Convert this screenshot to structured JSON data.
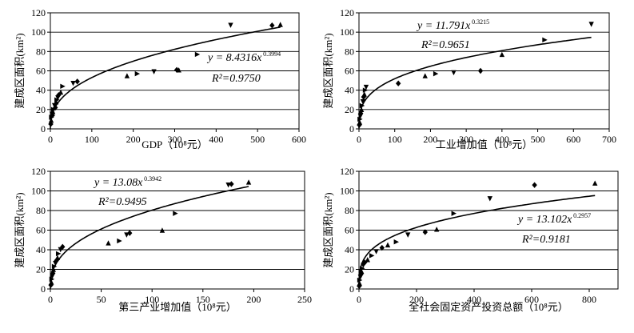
{
  "chart_data": [
    {
      "type": "scatter",
      "xlabel": "GDP（10⁸元）",
      "ylabel": "建成区面积(km²)",
      "xlim": [
        0,
        600
      ],
      "ylim": [
        0,
        120
      ],
      "xticks": [
        0,
        100,
        200,
        300,
        400,
        500,
        600
      ],
      "yticks": [
        0,
        20,
        40,
        60,
        80,
        100,
        120
      ],
      "fit": {
        "coef": 8.4316,
        "exp": 0.3994,
        "coef_text": "y = 8.4316x",
        "exp_text": "0.3994",
        "r2_text": "R²=0.9750"
      },
      "points": [
        [
          1,
          5
        ],
        [
          2,
          9
        ],
        [
          3,
          12
        ],
        [
          4,
          15
        ],
        [
          5,
          14
        ],
        [
          6,
          18
        ],
        [
          8,
          20
        ],
        [
          10,
          24
        ],
        [
          12,
          22
        ],
        [
          14,
          28
        ],
        [
          16,
          30
        ],
        [
          18,
          32
        ],
        [
          20,
          35
        ],
        [
          25,
          38
        ],
        [
          30,
          44
        ],
        [
          55,
          47
        ],
        [
          65,
          49
        ],
        [
          185,
          55
        ],
        [
          210,
          57
        ],
        [
          250,
          59
        ],
        [
          305,
          61
        ],
        [
          310,
          61
        ],
        [
          355,
          77
        ],
        [
          435,
          107
        ],
        [
          535,
          107
        ],
        [
          555,
          108
        ]
      ]
    },
    {
      "type": "scatter",
      "xlabel": "工业增加值（10⁸元）",
      "ylabel": "建成区面积(km²)",
      "xlim": [
        0,
        700
      ],
      "ylim": [
        0,
        120
      ],
      "xticks": [
        0,
        100,
        200,
        300,
        400,
        500,
        600,
        700
      ],
      "yticks": [
        0,
        20,
        40,
        60,
        80,
        100,
        120
      ],
      "fit": {
        "coef": 11.791,
        "exp": 0.3215,
        "coef_text": "y = 11.791x",
        "exp_text": "0.3215",
        "r2_text": "R²=0.9651"
      },
      "points": [
        [
          1,
          4
        ],
        [
          2,
          7
        ],
        [
          3,
          10
        ],
        [
          4,
          13
        ],
        [
          5,
          16
        ],
        [
          7,
          20
        ],
        [
          9,
          24
        ],
        [
          11,
          28
        ],
        [
          13,
          33
        ],
        [
          15,
          36
        ],
        [
          18,
          40
        ],
        [
          20,
          43
        ],
        [
          110,
          47
        ],
        [
          185,
          55
        ],
        [
          215,
          57
        ],
        [
          265,
          58
        ],
        [
          340,
          60
        ],
        [
          400,
          77
        ],
        [
          520,
          92
        ],
        [
          650,
          108
        ]
      ]
    },
    {
      "type": "scatter",
      "xlabel": "第三产业增加值（10⁸元）",
      "ylabel": "建成区面积(km²)",
      "xlim": [
        0,
        250
      ],
      "ylim": [
        0,
        120
      ],
      "xticks": [
        0,
        50,
        100,
        150,
        200,
        250
      ],
      "yticks": [
        0,
        20,
        40,
        60,
        80,
        100,
        120
      ],
      "fit": {
        "coef": 13.08,
        "exp": 0.3942,
        "coef_text": "y = 13.08x",
        "exp_text": "0.3942",
        "r2_text": "R²=0.9495"
      },
      "points": [
        [
          0.5,
          4
        ],
        [
          1,
          7
        ],
        [
          1.5,
          10
        ],
        [
          2,
          13
        ],
        [
          2.5,
          16
        ],
        [
          3,
          20
        ],
        [
          4,
          23
        ],
        [
          5,
          26
        ],
        [
          6,
          29
        ],
        [
          7,
          32
        ],
        [
          8,
          36
        ],
        [
          10,
          40
        ],
        [
          12,
          43
        ],
        [
          57,
          47
        ],
        [
          68,
          49
        ],
        [
          75,
          55
        ],
        [
          78,
          57
        ],
        [
          110,
          60
        ],
        [
          123,
          77
        ],
        [
          175,
          106
        ],
        [
          178,
          107
        ],
        [
          195,
          109
        ]
      ]
    },
    {
      "type": "scatter",
      "xlabel": "全社会固定资产投资总额（10⁸元）",
      "ylabel": "建成区面积(km²)",
      "xlim": [
        0,
        900
      ],
      "ylim": [
        0,
        120
      ],
      "xticks": [
        0,
        200,
        400,
        600,
        800
      ],
      "yticks": [
        0,
        20,
        40,
        60,
        80,
        100,
        120
      ],
      "fit": {
        "coef": 13.102,
        "exp": 0.2957,
        "coef_text": "y = 13.102x",
        "exp_text": "0.2957",
        "r2_text": "R²=0.9181"
      },
      "points": [
        [
          1,
          3
        ],
        [
          2,
          6
        ],
        [
          3,
          9
        ],
        [
          5,
          12
        ],
        [
          7,
          15
        ],
        [
          9,
          18
        ],
        [
          12,
          21
        ],
        [
          15,
          24
        ],
        [
          20,
          27
        ],
        [
          30,
          30
        ],
        [
          45,
          34
        ],
        [
          60,
          38
        ],
        [
          80,
          42
        ],
        [
          100,
          45
        ],
        [
          130,
          48
        ],
        [
          170,
          55
        ],
        [
          230,
          58
        ],
        [
          270,
          61
        ],
        [
          330,
          77
        ],
        [
          455,
          92
        ],
        [
          610,
          106
        ],
        [
          820,
          108
        ]
      ]
    }
  ]
}
